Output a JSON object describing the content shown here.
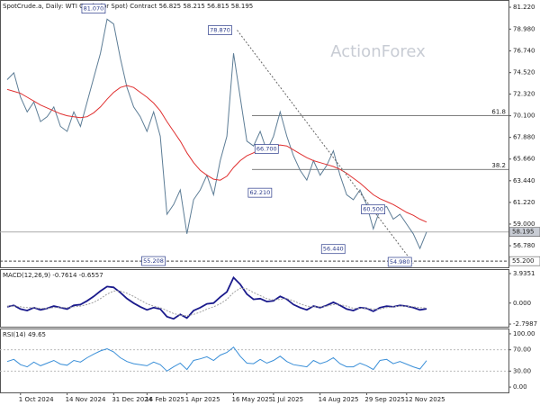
{
  "chart_data": [
    {
      "type": "line",
      "title": "SpotCrude.a, Daily:  WTI Crude (or Spot) Contract  56.825 58.215 56.815 58.195",
      "watermark": "ActionForex",
      "ylim": [
        54.57,
        81.96
      ],
      "yticks": [
        {
          "value": 81.22,
          "label": "81.220"
        },
        {
          "value": 78.98,
          "label": "78.980"
        },
        {
          "value": 76.74,
          "label": "76.740"
        },
        {
          "value": 74.52,
          "label": "74.520"
        },
        {
          "value": 72.32,
          "label": "72.320"
        },
        {
          "value": 70.1,
          "label": "70.100"
        },
        {
          "value": 67.88,
          "label": "67.880"
        },
        {
          "value": 65.66,
          "label": "65.660"
        },
        {
          "value": 63.44,
          "label": "63.440"
        },
        {
          "value": 61.22,
          "label": "61.220"
        },
        {
          "value": 59,
          "label": "59.000"
        },
        {
          "value": 56.78,
          "label": "56.780"
        }
      ],
      "series": [
        {
          "name": "Price",
          "color": "#5d7d96",
          "values": [
            73.8,
            74.5,
            72.0,
            70.5,
            71.5,
            69.5,
            70.0,
            71.0,
            69.0,
            68.5,
            70.5,
            69.0,
            71.5,
            74.0,
            76.5,
            80.0,
            79.5,
            76.0,
            73.0,
            71.0,
            70.0,
            68.5,
            70.5,
            68.0,
            60.0,
            61.0,
            62.5,
            58.0,
            61.5,
            62.5,
            64.0,
            62.0,
            65.5,
            68.0,
            76.5,
            72.0,
            67.5,
            67.0,
            68.5,
            66.5,
            68.0,
            70.5,
            68.0,
            66.0,
            64.5,
            63.5,
            65.5,
            64.0,
            65.0,
            66.5,
            64.0,
            62.0,
            61.5,
            62.5,
            61.0,
            58.5,
            60.5,
            60.8,
            59.5,
            60.0,
            59.0,
            58.0,
            56.5,
            58.195
          ]
        },
        {
          "name": "MA",
          "color": "#e03030",
          "values": [
            72.8,
            72.6,
            72.4,
            72.0,
            71.6,
            71.2,
            70.9,
            70.6,
            70.3,
            70.1,
            70.0,
            69.9,
            70.0,
            70.4,
            71.0,
            71.8,
            72.5,
            73.0,
            73.2,
            73.0,
            72.5,
            72.0,
            71.4,
            70.6,
            69.5,
            68.5,
            67.5,
            66.3,
            65.3,
            64.5,
            64.0,
            63.6,
            63.5,
            63.9,
            64.8,
            65.5,
            66.0,
            66.3,
            66.7,
            66.9,
            67.0,
            67.1,
            67.0,
            66.6,
            66.2,
            65.8,
            65.5,
            65.3,
            65.1,
            64.9,
            64.6,
            64.2,
            63.7,
            63.2,
            62.6,
            62.0,
            61.6,
            61.3,
            61.0,
            60.6,
            60.2,
            59.9,
            59.5,
            59.2
          ]
        }
      ],
      "price_labels": [
        {
          "value": 58.195,
          "label": "58.195"
        },
        {
          "value": 55.2,
          "label": "55.200"
        }
      ],
      "levels": [
        {
          "value": 70.1,
          "label": "61.8"
        },
        {
          "value": 64.6,
          "label": "38.2"
        }
      ],
      "annotations": [
        {
          "value": 81.07,
          "label": "81.070"
        },
        {
          "value": 78.87,
          "label": "78.870"
        },
        {
          "value": 66.7,
          "label": "66.700"
        },
        {
          "value": 62.21,
          "label": "62.210"
        },
        {
          "value": 60.5,
          "label": "60.500"
        },
        {
          "value": 56.44,
          "label": "56.440"
        },
        {
          "value": 54.98,
          "label": "54.980"
        },
        {
          "value": 55.208,
          "label": "55.208"
        }
      ]
    },
    {
      "type": "line",
      "title": "MACD(12,26,9) -0.7614 -0.6557",
      "ylim": [
        -3.15,
        4.53
      ],
      "yticks": [
        3.9351,
        {
          "value": 0,
          "label": "0.000"
        },
        -2.7987
      ],
      "series": [
        {
          "name": "MACD",
          "color": "#1a1a8c",
          "values": [
            -0.5,
            -0.3,
            -0.8,
            -1.0,
            -0.6,
            -0.9,
            -0.7,
            -0.4,
            -0.6,
            -0.8,
            -0.3,
            -0.2,
            0.3,
            0.9,
            1.6,
            2.2,
            2.1,
            1.4,
            0.6,
            0.0,
            -0.5,
            -0.9,
            -0.6,
            -0.8,
            -1.8,
            -2.1,
            -1.5,
            -2.0,
            -1.0,
            -0.6,
            -0.1,
            0.0,
            0.8,
            1.5,
            3.4,
            2.5,
            1.2,
            0.5,
            0.6,
            0.2,
            0.3,
            0.9,
            0.5,
            -0.2,
            -0.6,
            -0.9,
            -0.4,
            -0.6,
            -0.3,
            0.1,
            -0.3,
            -0.8,
            -1.0,
            -0.6,
            -0.7,
            -1.1,
            -0.6,
            -0.4,
            -0.5,
            -0.3,
            -0.4,
            -0.6,
            -0.9,
            -0.7614
          ]
        },
        {
          "name": "Signal",
          "color": "#a0a0a0",
          "values": [
            -0.4,
            -0.4,
            -0.5,
            -0.6,
            -0.6,
            -0.7,
            -0.7,
            -0.6,
            -0.6,
            -0.6,
            -0.5,
            -0.4,
            -0.2,
            0.1,
            0.6,
            1.2,
            1.6,
            1.6,
            1.3,
            0.9,
            0.4,
            -0.1,
            -0.4,
            -0.6,
            -1.0,
            -1.4,
            -1.6,
            -1.7,
            -1.5,
            -1.2,
            -0.8,
            -0.5,
            -0.1,
            0.5,
            1.4,
            2.0,
            1.9,
            1.4,
            1.0,
            0.6,
            0.4,
            0.5,
            0.6,
            0.3,
            -0.1,
            -0.4,
            -0.5,
            -0.5,
            -0.4,
            -0.2,
            -0.2,
            -0.4,
            -0.7,
            -0.7,
            -0.7,
            -0.8,
            -0.8,
            -0.6,
            -0.5,
            -0.4,
            -0.4,
            -0.5,
            -0.6,
            -0.6557
          ]
        }
      ]
    },
    {
      "type": "line",
      "title": "RSI(14) 49.65",
      "ylim": [
        -10,
        110
      ],
      "yticks": [
        {
          "value": 100,
          "label": "100.00"
        },
        {
          "value": 70,
          "label": "70.00"
        },
        {
          "value": 30,
          "label": "30.00"
        },
        {
          "value": 0,
          "label": "0.00"
        }
      ],
      "categories": [
        null,
        null,
        "1 Oct 2024",
        null,
        null,
        null,
        null,
        null,
        null,
        "14 Nov 2024",
        null,
        null,
        null,
        null,
        null,
        null,
        "31 Dec 2024",
        null,
        null,
        null,
        null,
        "14 Feb 2025",
        null,
        null,
        null,
        null,
        null,
        "1 Apr 2025",
        null,
        null,
        null,
        null,
        null,
        null,
        "16 May 2025",
        null,
        null,
        null,
        null,
        null,
        "1 Jul 2025",
        null,
        null,
        null,
        null,
        null,
        null,
        "14 Aug 2025",
        null,
        null,
        null,
        null,
        null,
        null,
        "29 Sep 2025",
        null,
        null,
        null,
        null,
        null,
        "12 Nov 2025",
        null,
        null,
        null
      ],
      "series": [
        {
          "name": "RSI",
          "color": "#3a8fd8",
          "values": [
            48,
            52,
            42,
            38,
            47,
            40,
            45,
            50,
            43,
            41,
            50,
            47,
            55,
            62,
            68,
            72,
            66,
            55,
            48,
            44,
            42,
            40,
            47,
            42,
            30,
            38,
            45,
            33,
            50,
            53,
            57,
            50,
            60,
            65,
            75,
            58,
            45,
            44,
            52,
            45,
            50,
            58,
            48,
            42,
            40,
            38,
            50,
            44,
            48,
            55,
            44,
            38,
            38,
            45,
            40,
            33,
            50,
            52,
            44,
            48,
            43,
            38,
            34,
            49.65
          ]
        }
      ]
    }
  ]
}
